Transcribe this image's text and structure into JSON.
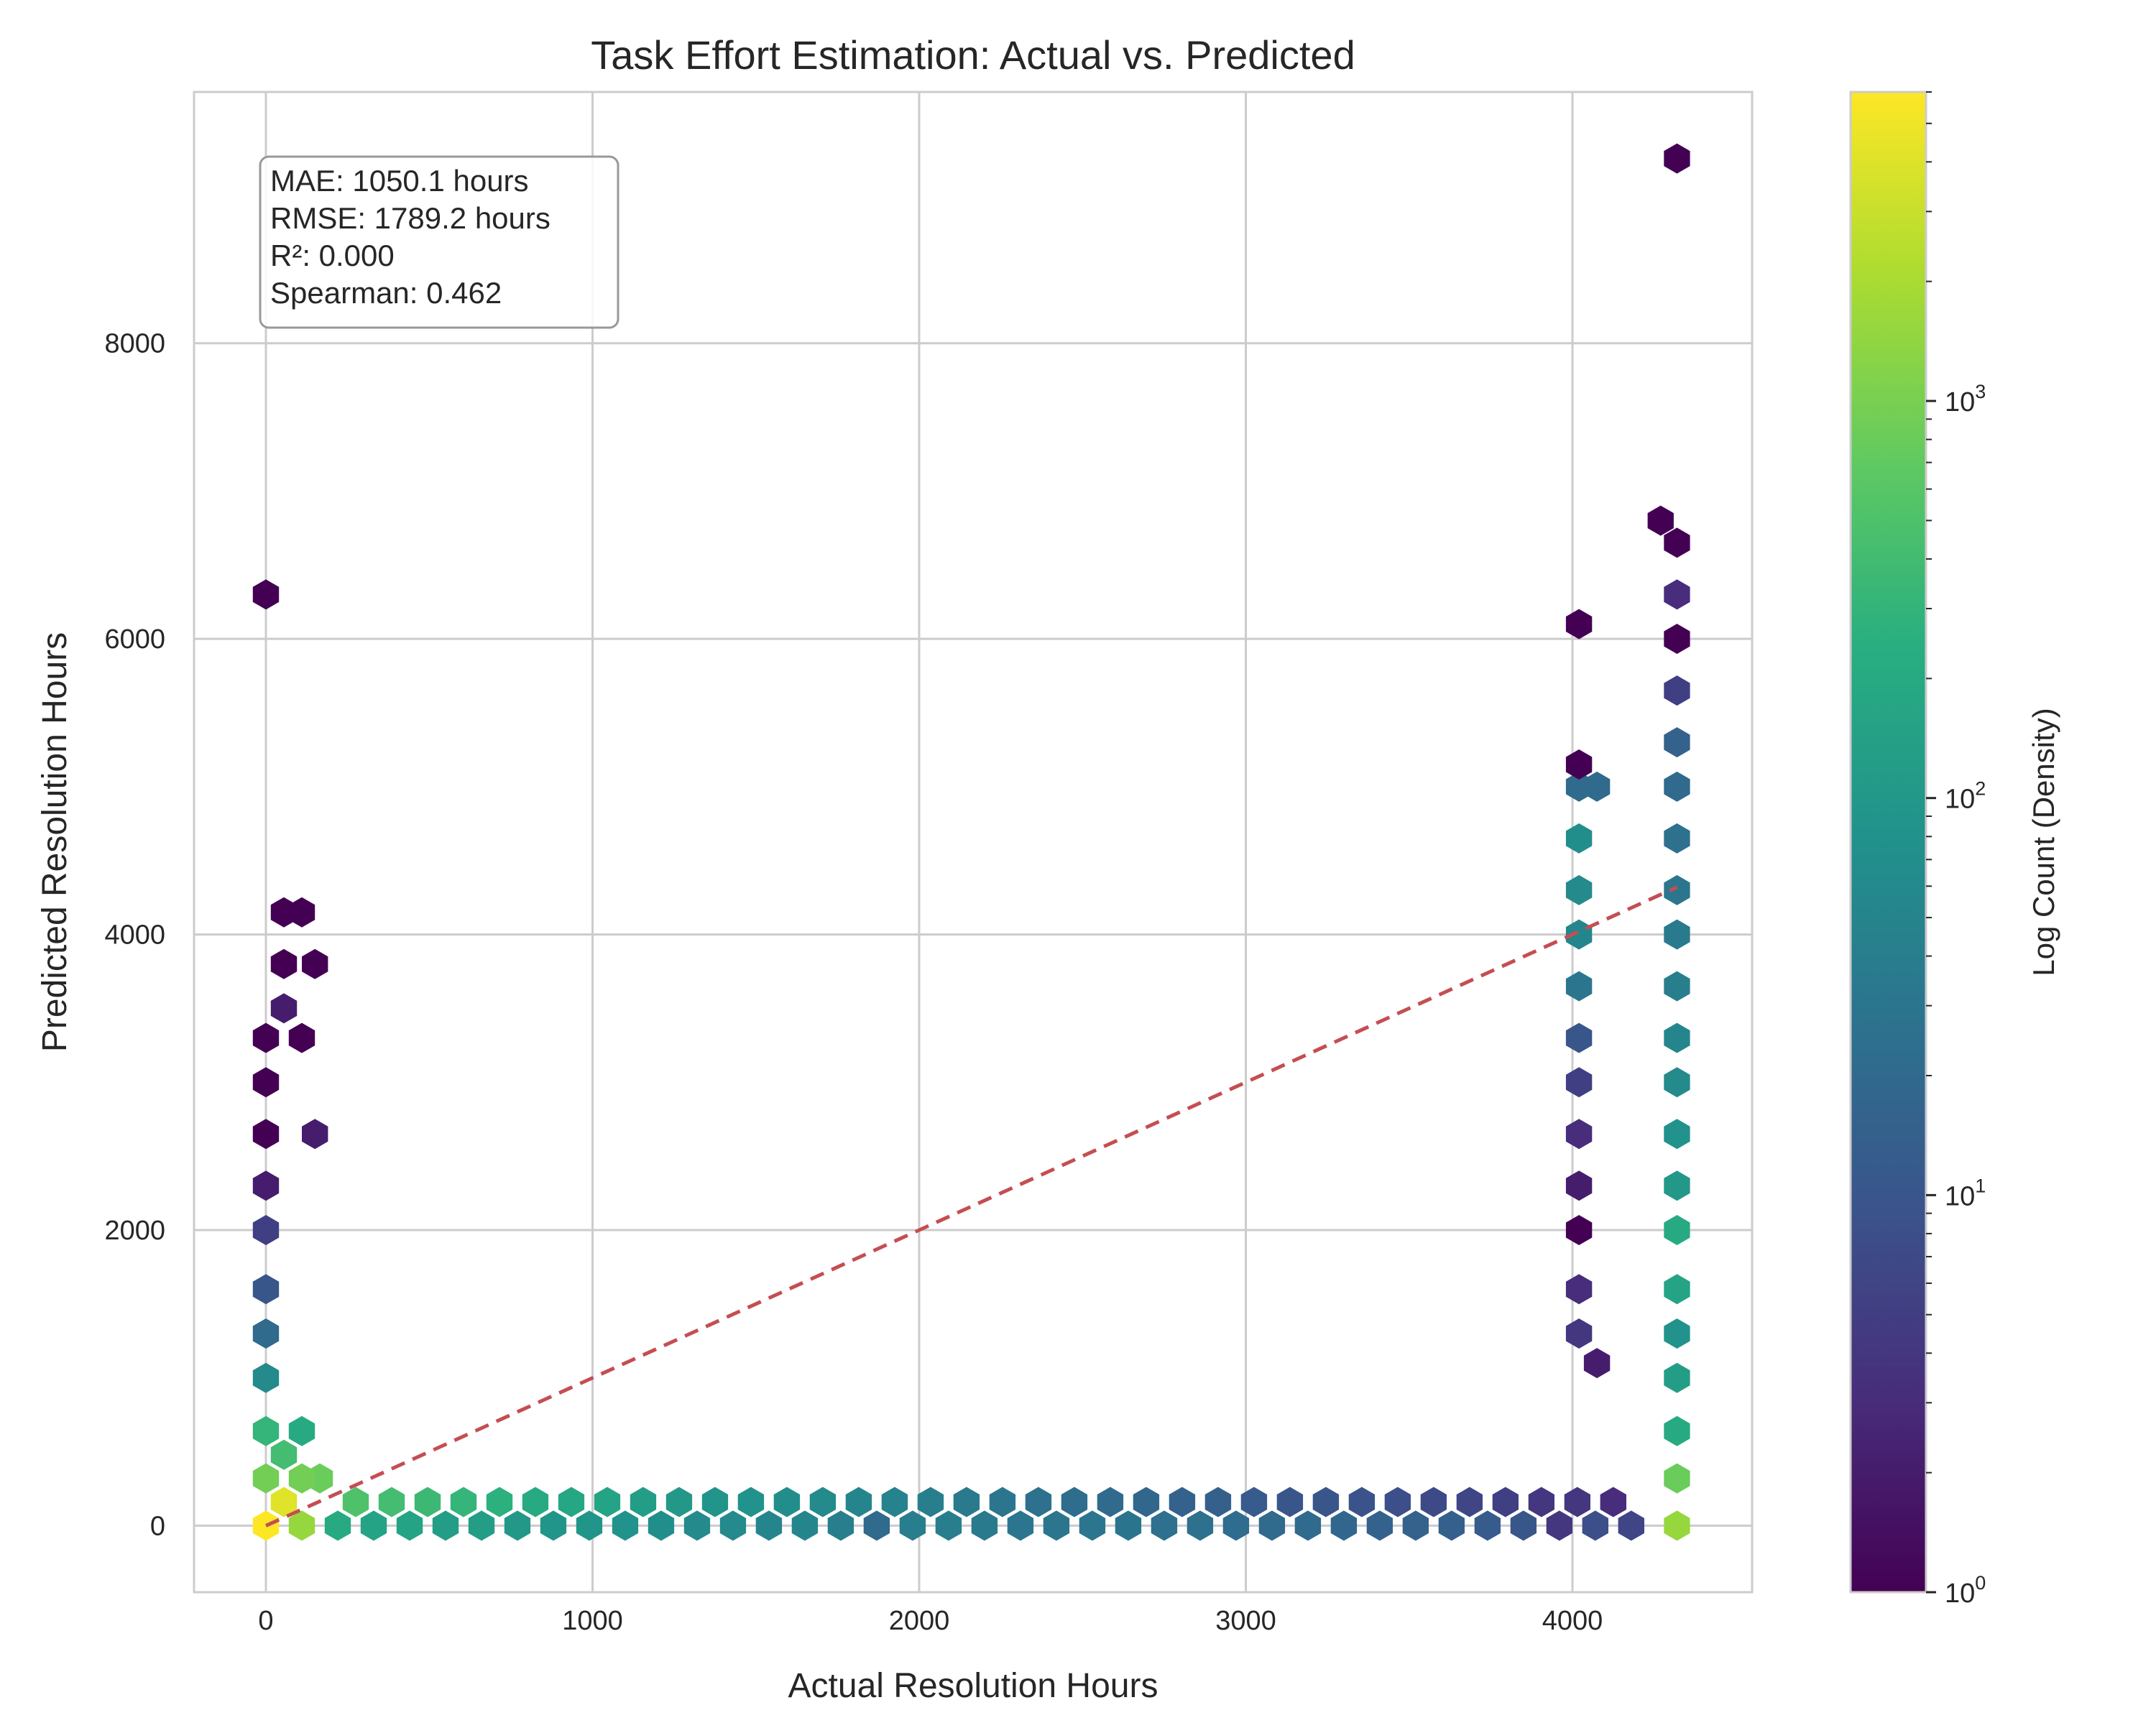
{
  "chart_data": {
    "type": "hexbin",
    "title": "Task Effort Estimation: Actual vs. Predicted",
    "xlabel": "Actual Resolution Hours",
    "ylabel": "Predicted Resolution Hours",
    "xlim": [
      -220,
      4550
    ],
    "ylim": [
      -450,
      9700
    ],
    "x_ticks": [
      0,
      1000,
      2000,
      3000,
      4000
    ],
    "x_tick_labels": [
      "0",
      "1000",
      "2000",
      "3000",
      "4000"
    ],
    "y_ticks": [
      0,
      2000,
      4000,
      6000,
      8000
    ],
    "y_tick_labels": [
      "0",
      "2000",
      "4000",
      "6000",
      "8000"
    ],
    "grid": true,
    "colormap": "viridis",
    "color_scale": "log",
    "colorbar": {
      "label": "Log Count (Density)",
      "range": [
        1,
        6000
      ],
      "ticks": [
        1,
        10,
        100,
        1000
      ],
      "tick_labels": [
        {
          "base": "10",
          "exp": "0"
        },
        {
          "base": "10",
          "exp": "1"
        },
        {
          "base": "10",
          "exp": "2"
        },
        {
          "base": "10",
          "exp": "3"
        }
      ]
    },
    "reference_line": {
      "style": "dashed",
      "color": "#c44e52",
      "from": [
        0,
        0
      ],
      "to": [
        4320,
        4320
      ]
    },
    "stats_box": {
      "placement": "top-left",
      "lines": [
        "MAE: 1050.1 hours",
        "RMSE: 1789.2 hours",
        "R²: 0.000",
        "Spearman: 0.462"
      ]
    },
    "hexbins": [
      [
        0,
        0,
        6000
      ],
      [
        55,
        160,
        4000
      ],
      [
        110,
        0,
        1500
      ],
      [
        165,
        320,
        800
      ],
      [
        0,
        320,
        900
      ],
      [
        0,
        640,
        300
      ],
      [
        55,
        480,
        400
      ],
      [
        110,
        320,
        900
      ],
      [
        110,
        640,
        200
      ],
      [
        0,
        1000,
        60
      ],
      [
        0,
        1300,
        20
      ],
      [
        0,
        1600,
        10
      ],
      [
        0,
        2000,
        5
      ],
      [
        0,
        2300,
        2
      ],
      [
        0,
        2650,
        1
      ],
      [
        0,
        3000,
        1
      ],
      [
        0,
        3300,
        1
      ],
      [
        0,
        6300,
        1
      ],
      [
        55,
        3500,
        2
      ],
      [
        55,
        3800,
        1
      ],
      [
        55,
        4150,
        1
      ],
      [
        110,
        4150,
        1
      ],
      [
        150,
        3800,
        1
      ],
      [
        110,
        3300,
        1
      ],
      [
        150,
        2650,
        2
      ],
      [
        220,
        0,
        200
      ],
      [
        330,
        0,
        150
      ],
      [
        440,
        0,
        150
      ],
      [
        550,
        0,
        120
      ],
      [
        660,
        0,
        120
      ],
      [
        770,
        0,
        100
      ],
      [
        880,
        0,
        90
      ],
      [
        990,
        0,
        90
      ],
      [
        1100,
        0,
        80
      ],
      [
        1210,
        0,
        70
      ],
      [
        1320,
        0,
        60
      ],
      [
        1430,
        0,
        60
      ],
      [
        1540,
        0,
        50
      ],
      [
        1650,
        0,
        50
      ],
      [
        1760,
        0,
        40
      ],
      [
        1870,
        0,
        20
      ],
      [
        1980,
        0,
        40
      ],
      [
        2090,
        0,
        40
      ],
      [
        2200,
        0,
        35
      ],
      [
        2310,
        0,
        30
      ],
      [
        2420,
        0,
        30
      ],
      [
        2530,
        0,
        30
      ],
      [
        2640,
        0,
        28
      ],
      [
        2750,
        0,
        25
      ],
      [
        2860,
        0,
        25
      ],
      [
        2970,
        0,
        22
      ],
      [
        3080,
        0,
        20
      ],
      [
        3190,
        0,
        20
      ],
      [
        3300,
        0,
        18
      ],
      [
        3410,
        0,
        15
      ],
      [
        3520,
        0,
        15
      ],
      [
        3630,
        0,
        14
      ],
      [
        3740,
        0,
        12
      ],
      [
        3850,
        0,
        10
      ],
      [
        3960,
        0,
        4
      ],
      [
        4070,
        0,
        8
      ],
      [
        4180,
        0,
        6
      ],
      [
        4320,
        0,
        1500
      ],
      [
        275,
        160,
        500
      ],
      [
        385,
        160,
        400
      ],
      [
        495,
        160,
        350
      ],
      [
        605,
        160,
        300
      ],
      [
        715,
        160,
        250
      ],
      [
        825,
        160,
        200
      ],
      [
        935,
        160,
        180
      ],
      [
        1045,
        160,
        150
      ],
      [
        1155,
        160,
        120
      ],
      [
        1265,
        160,
        100
      ],
      [
        1375,
        160,
        90
      ],
      [
        1485,
        160,
        80
      ],
      [
        1595,
        160,
        70
      ],
      [
        1705,
        160,
        60
      ],
      [
        1815,
        160,
        50
      ],
      [
        1925,
        160,
        45
      ],
      [
        2035,
        160,
        40
      ],
      [
        2145,
        160,
        35
      ],
      [
        2255,
        160,
        30
      ],
      [
        2365,
        160,
        25
      ],
      [
        2475,
        160,
        22
      ],
      [
        2585,
        160,
        20
      ],
      [
        2695,
        160,
        18
      ],
      [
        2805,
        160,
        15
      ],
      [
        2915,
        160,
        14
      ],
      [
        3025,
        160,
        12
      ],
      [
        3135,
        160,
        10
      ],
      [
        3245,
        160,
        10
      ],
      [
        3355,
        160,
        9
      ],
      [
        3465,
        160,
        8
      ],
      [
        3575,
        160,
        7
      ],
      [
        3685,
        160,
        6
      ],
      [
        3795,
        160,
        5
      ],
      [
        3905,
        160,
        4
      ],
      [
        4015,
        160,
        4
      ],
      [
        4125,
        160,
        3
      ],
      [
        4320,
        320,
        800
      ],
      [
        4320,
        640,
        200
      ],
      [
        4320,
        1000,
        120
      ],
      [
        4320,
        1300,
        80
      ],
      [
        4320,
        1600,
        150
      ],
      [
        4320,
        2000,
        200
      ],
      [
        4320,
        2300,
        100
      ],
      [
        4320,
        2650,
        80
      ],
      [
        4320,
        3000,
        60
      ],
      [
        4320,
        3300,
        50
      ],
      [
        4320,
        3650,
        40
      ],
      [
        4320,
        4000,
        35
      ],
      [
        4320,
        4300,
        30
      ],
      [
        4320,
        4650,
        25
      ],
      [
        4320,
        5000,
        20
      ],
      [
        4320,
        5300,
        15
      ],
      [
        4320,
        5650,
        5
      ],
      [
        4320,
        6000,
        1
      ],
      [
        4320,
        6300,
        3
      ],
      [
        4320,
        6650,
        1
      ],
      [
        4270,
        6800,
        1
      ],
      [
        4320,
        9250,
        1
      ],
      [
        4020,
        1300,
        4
      ],
      [
        4020,
        1600,
        3
      ],
      [
        4020,
        2000,
        1
      ],
      [
        4020,
        2300,
        2
      ],
      [
        4020,
        2650,
        3
      ],
      [
        4020,
        3000,
        5
      ],
      [
        4020,
        3300,
        10
      ],
      [
        4020,
        3650,
        30
      ],
      [
        4020,
        4000,
        50
      ],
      [
        4020,
        4300,
        60
      ],
      [
        4020,
        4650,
        70
      ],
      [
        4020,
        5000,
        20
      ],
      [
        4020,
        5150,
        1
      ],
      [
        4020,
        6100,
        1
      ],
      [
        4075,
        5000,
        20
      ],
      [
        4075,
        1100,
        2
      ]
    ]
  }
}
